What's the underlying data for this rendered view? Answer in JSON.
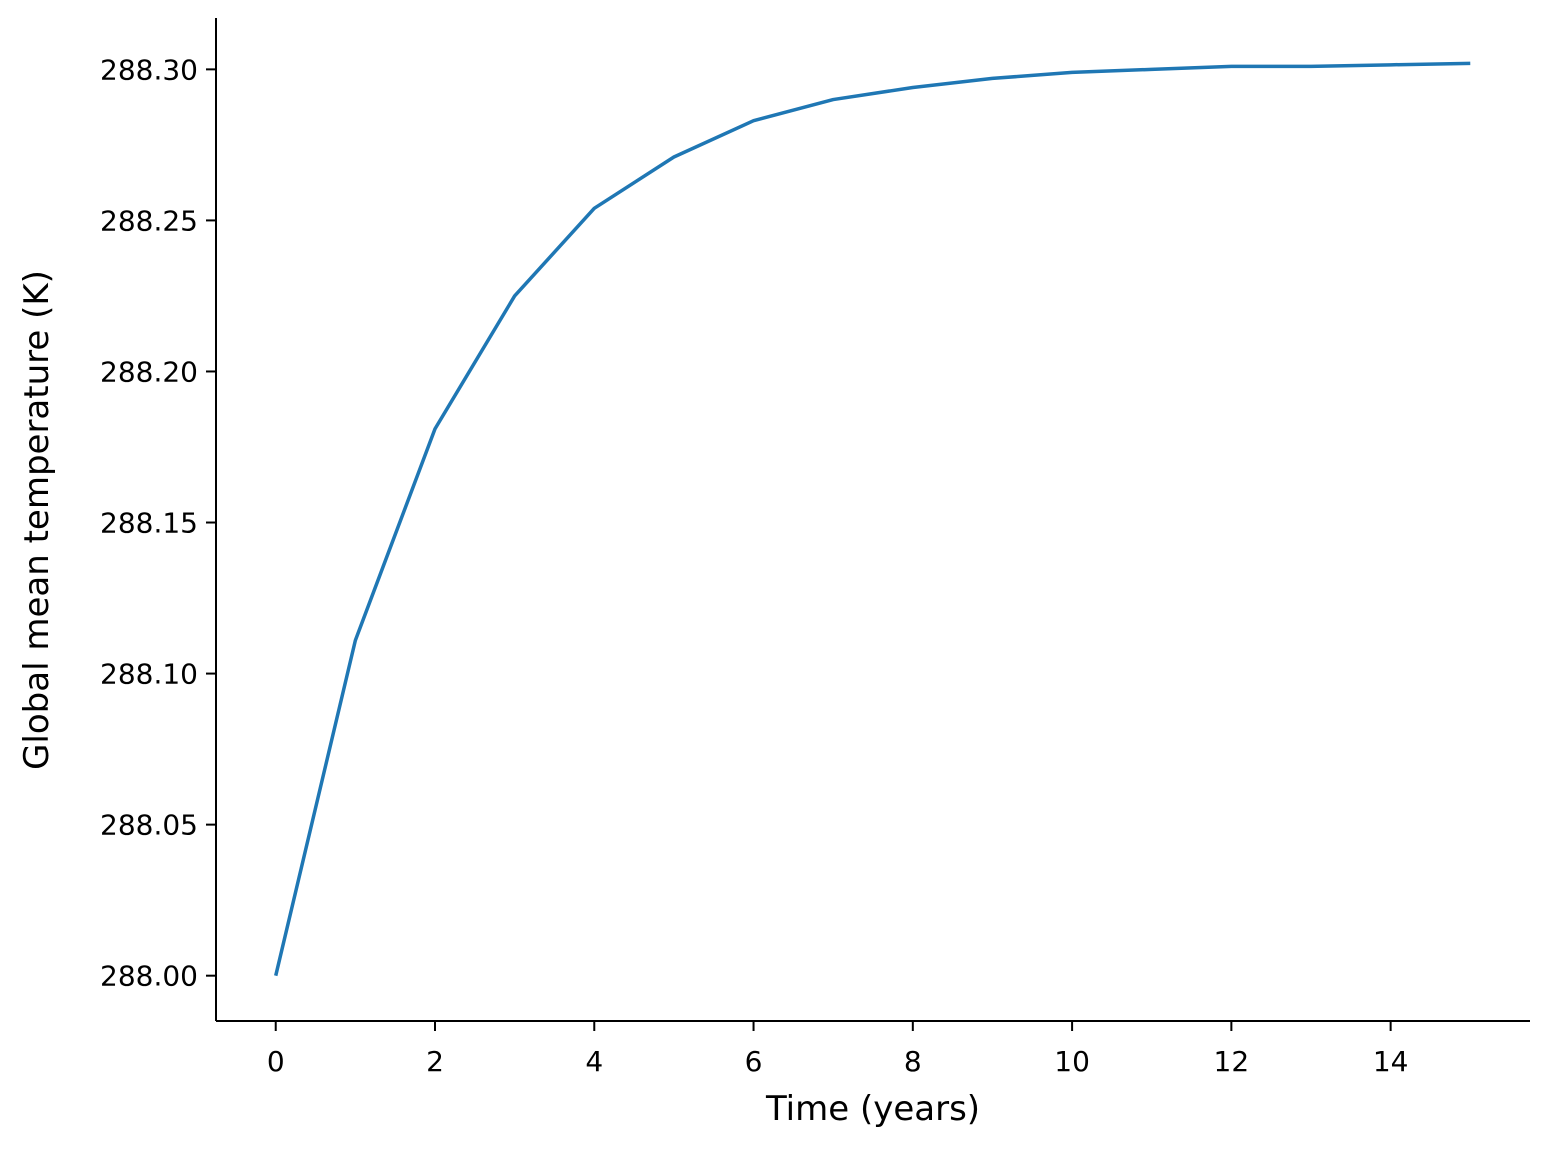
{
  "chart_data": {
    "type": "line",
    "x_label": "Time (years)",
    "y_label": "Global mean temperature (K)",
    "x": [
      0,
      1,
      2,
      3,
      4,
      5,
      6,
      7,
      8,
      9,
      10,
      11,
      12,
      13,
      14,
      15
    ],
    "series": [
      {
        "color": "#1f77b4",
        "values": [
          288.0,
          288.111,
          288.181,
          288.225,
          288.254,
          288.271,
          288.283,
          288.29,
          288.294,
          288.297,
          288.299,
          288.3,
          288.301,
          288.301,
          288.3015,
          288.302
        ]
      }
    ],
    "xlim": [
      -0.75,
      15.75
    ],
    "xticks": [
      0,
      2,
      4,
      6,
      8,
      10,
      12,
      14
    ],
    "ylim": [
      287.985,
      288.317
    ],
    "yticks": [
      {
        "value": 288.0,
        "label": "288.00"
      },
      {
        "value": 288.05,
        "label": "288.05"
      },
      {
        "value": 288.1,
        "label": "288.10"
      },
      {
        "value": 288.15,
        "label": "288.15"
      },
      {
        "value": 288.2,
        "label": "288.20"
      },
      {
        "value": 288.25,
        "label": "288.25"
      },
      {
        "value": 288.3,
        "label": "288.30"
      }
    ]
  }
}
